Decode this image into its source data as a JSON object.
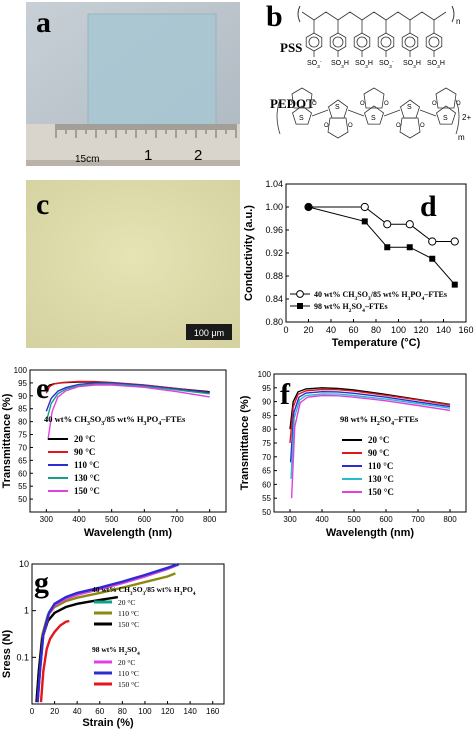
{
  "panels": {
    "a": {
      "label": "a",
      "ruler_unit": "15cm",
      "ruler_ticks": [
        "1",
        "2"
      ]
    },
    "b": {
      "label": "b",
      "pss_label": "PSS",
      "pedot_label": "PEDOT",
      "sulfonate_groups": [
        "SO3-",
        "SO3H",
        "SO3H",
        "SO3-",
        "SO3H",
        "SO3H"
      ],
      "repeat_n": "n",
      "repeat_m": "m",
      "charge": "2+"
    },
    "c": {
      "label": "c",
      "scale_bar": "100 μm"
    }
  },
  "chart_data": [
    {
      "id": "d",
      "type": "line",
      "panel_label": "d",
      "xlabel": "Temperature (°C)",
      "ylabel": "Conductivity (a.u.)",
      "xlim": [
        0,
        160
      ],
      "ylim": [
        0.8,
        1.04
      ],
      "xticks": [
        "0",
        "20",
        "40",
        "60",
        "80",
        "100",
        "120",
        "140",
        "160"
      ],
      "yticks": [
        "0.80",
        "0.84",
        "0.88",
        "0.92",
        "0.96",
        "1.00",
        "1.04"
      ],
      "legend_position": "bottom",
      "series": [
        {
          "name": "40 wt% CH3SO3/85 wt% H3PO4–FTEs",
          "marker": "circle",
          "x": [
            20,
            70,
            90,
            110,
            130,
            150
          ],
          "y": [
            1.0,
            1.0,
            0.97,
            0.97,
            0.94,
            0.94
          ]
        },
        {
          "name": "98 wt% H2SO4–FTEs",
          "marker": "square",
          "x": [
            20,
            70,
            90,
            110,
            130,
            150
          ],
          "y": [
            1.0,
            0.975,
            0.93,
            0.93,
            0.91,
            0.865
          ]
        }
      ]
    },
    {
      "id": "e",
      "type": "line",
      "panel_label": "e",
      "xlabel": "Wavelength (nm)",
      "ylabel": "Transmittance (%)",
      "xlim": [
        250,
        850
      ],
      "ylim": [
        45,
        100
      ],
      "xticks": [
        "300",
        "400",
        "500",
        "600",
        "700",
        "800"
      ],
      "yticks": [
        "50",
        "55",
        "60",
        "65",
        "70",
        "75",
        "80",
        "85",
        "90",
        "95",
        "100"
      ],
      "legend_title": "40 wt% CH3SO3/85 wt% H3PO4–FTEs",
      "series": [
        {
          "name": "20 °C",
          "color": "#000000",
          "x": [
            300,
            310,
            325,
            350,
            400,
            450,
            500,
            600,
            700,
            800
          ],
          "y": [
            93,
            94.2,
            94.7,
            95.1,
            95.3,
            95.3,
            95,
            94.1,
            92.8,
            91.6
          ]
        },
        {
          "name": "90 °C",
          "color": "#e4161b",
          "x": [
            300,
            310,
            325,
            350,
            400,
            450,
            500,
            600,
            700,
            800
          ],
          "y": [
            91,
            93.6,
            94.6,
            95.2,
            95.6,
            95.5,
            95.2,
            94.2,
            92.8,
            91.3
          ]
        },
        {
          "name": "110 °C",
          "color": "#2d2bd2",
          "x": [
            300,
            315,
            335,
            360,
            400,
            450,
            500,
            600,
            700,
            800
          ],
          "y": [
            84,
            89,
            91.8,
            93.2,
            94.4,
            95,
            95,
            94,
            92.6,
            91.2
          ]
        },
        {
          "name": "130 °C",
          "color": "#16a085",
          "x": [
            300,
            315,
            335,
            360,
            400,
            450,
            500,
            600,
            700,
            800
          ],
          "y": [
            80,
            87,
            90.8,
            92.6,
            94,
            94.6,
            94.6,
            93.7,
            92.3,
            90.8
          ]
        },
        {
          "name": "150 °C",
          "color": "#e040e0",
          "x": [
            305,
            318,
            335,
            360,
            400,
            450,
            500,
            600,
            700,
            800
          ],
          "y": [
            73,
            84,
            89.5,
            92,
            93.6,
            94.2,
            94.2,
            93.3,
            91.6,
            89.6
          ]
        }
      ]
    },
    {
      "id": "f",
      "type": "line",
      "panel_label": "f",
      "xlabel": "Wavelength (nm)",
      "ylabel": "Transmittance (%)",
      "xlim": [
        250,
        850
      ],
      "ylim": [
        50,
        100
      ],
      "xticks": [
        "300",
        "400",
        "500",
        "600",
        "700",
        "800"
      ],
      "yticks": [
        "50",
        "55",
        "60",
        "65",
        "70",
        "75",
        "80",
        "85",
        "90",
        "95",
        "100"
      ],
      "legend_title": "98 wt% H2SO4–FTEs",
      "series": [
        {
          "name": "20 °C",
          "color": "#000000",
          "x": [
            300,
            310,
            325,
            350,
            400,
            450,
            500,
            600,
            700,
            800
          ],
          "y": [
            80,
            90,
            93.5,
            94.6,
            95,
            94.8,
            94.2,
            92.6,
            90.8,
            89
          ]
        },
        {
          "name": "90 °C",
          "color": "#e4161b",
          "x": [
            300,
            310,
            325,
            350,
            400,
            450,
            500,
            600,
            700,
            800
          ],
          "y": [
            75,
            88,
            92.6,
            93.9,
            94.4,
            94.3,
            93.8,
            92.3,
            90.6,
            88.8
          ]
        },
        {
          "name": "110 °C",
          "color": "#2d2bd2",
          "x": [
            302,
            312,
            328,
            350,
            400,
            450,
            500,
            600,
            700,
            800
          ],
          "y": [
            68,
            86,
            91.6,
            93.1,
            93.6,
            93.5,
            93,
            91.6,
            89.9,
            88.2
          ]
        },
        {
          "name": "130 °C",
          "color": "#2bbad0",
          "x": [
            303,
            313,
            330,
            350,
            400,
            450,
            500,
            600,
            700,
            800
          ],
          "y": [
            62,
            84,
            90.6,
            92.2,
            92.8,
            92.7,
            92.2,
            90.9,
            89.3,
            87.6
          ]
        },
        {
          "name": "150 °C",
          "color": "#e040e0",
          "x": [
            305,
            315,
            332,
            355,
            400,
            450,
            500,
            600,
            700,
            800
          ],
          "y": [
            55,
            81,
            89.6,
            91.6,
            92.2,
            92.1,
            91.6,
            90.3,
            88.6,
            86.8
          ]
        }
      ]
    },
    {
      "id": "g",
      "type": "line",
      "panel_label": "g",
      "xlabel": "Strain (%)",
      "ylabel": "Sress (N)",
      "yscale": "log",
      "xlim": [
        0,
        170
      ],
      "ylim": [
        0.01,
        10
      ],
      "xticks": [
        "0",
        "20",
        "40",
        "60",
        "80",
        "100",
        "120",
        "140",
        "160"
      ],
      "yticks": [
        "0.1",
        "1",
        "10"
      ],
      "legend_groups": [
        "40 wt% CH3SO3/85 wt% H3PO4",
        "98 wt% H2SO4"
      ],
      "series": [
        {
          "name": "20 °C",
          "group": 0,
          "color": "#16a085",
          "x": [
            5,
            7,
            10,
            15,
            20,
            30,
            40,
            60,
            80,
            100,
            120,
            130
          ],
          "y": [
            0.011,
            0.05,
            0.3,
            0.9,
            1.4,
            1.9,
            2.3,
            3,
            4,
            5.5,
            7.8,
            9.8
          ]
        },
        {
          "name": "110 °C",
          "group": 0,
          "color": "#8a8a10",
          "x": [
            4,
            6,
            9,
            14,
            20,
            30,
            40,
            60,
            80,
            100,
            120,
            127
          ],
          "y": [
            0.011,
            0.05,
            0.3,
            0.8,
            1.2,
            1.6,
            1.9,
            2.4,
            3.1,
            4.1,
            5.4,
            6.3
          ]
        },
        {
          "name": "150 °C",
          "group": 0,
          "color": "#000000",
          "x": [
            4,
            6,
            9,
            14,
            20,
            30,
            40,
            50,
            60,
            70,
            76
          ],
          "y": [
            0.011,
            0.05,
            0.25,
            0.6,
            0.9,
            1.2,
            1.4,
            1.55,
            1.7,
            1.85,
            1.95
          ]
        },
        {
          "name": "20 °C",
          "group": 1,
          "color": "#e040e0",
          "x": [
            5,
            7,
            10,
            15,
            20,
            30,
            40,
            60,
            80,
            100,
            120,
            128
          ],
          "y": [
            0.011,
            0.05,
            0.3,
            0.85,
            1.3,
            1.8,
            2.2,
            2.9,
            3.9,
            5.4,
            7.9,
            9.4
          ]
        },
        {
          "name": "110 °C",
          "group": 1,
          "color": "#2d2bd2",
          "x": [
            5,
            7,
            10,
            15,
            20,
            30,
            40,
            60,
            80,
            100,
            120,
            130
          ],
          "y": [
            0.011,
            0.05,
            0.32,
            0.9,
            1.4,
            1.95,
            2.4,
            3.1,
            4.2,
            5.8,
            8.3,
            10
          ]
        },
        {
          "name": "150 °C",
          "group": 1,
          "color": "#e4161b",
          "x": [
            8,
            10,
            13,
            16,
            20,
            25,
            30,
            33
          ],
          "y": [
            0.011,
            0.05,
            0.15,
            0.25,
            0.35,
            0.48,
            0.58,
            0.6
          ]
        }
      ]
    }
  ]
}
